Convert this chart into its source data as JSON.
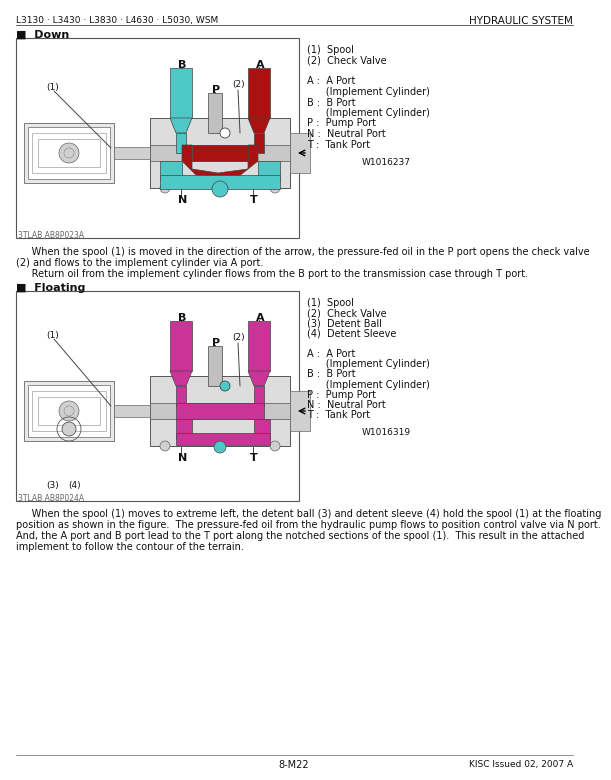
{
  "header_left": "L3130 · L3430 · L3830 · L4630 · L5030, WSM",
  "header_right": "HYDRAULIC SYSTEM",
  "section1_title": "■  Down",
  "section1_legend_line1": "(1)  Spool",
  "section1_legend_line2": "(2)  Check Valve",
  "section1_legend_line3": "",
  "section1_legend_line4": "A :  A Port",
  "section1_legend_line5": "      (Implement Cylinder)",
  "section1_legend_line6": "B :  B Port",
  "section1_legend_line7": "      (Implement Cylinder)",
  "section1_legend_line8": "P :  Pump Port",
  "section1_legend_line9": "N :  Neutral Port",
  "section1_legend_line10": "T :  Tank Port",
  "section1_code": "W1016237",
  "section1_img_label": "3TLAB AB8P023A",
  "section1_desc1": "     When the spool (1) is moved in the direction of the arrow, the pressure-fed oil in the P port opens the check valve",
  "section1_desc2": "(2) and flows to the implement cylinder via A port.",
  "section1_desc3": "     Return oil from the implement cylinder flows from the B port to the transmission case through T port.",
  "section2_title": "■  Floating",
  "section2_legend_line1": "(1)  Spool",
  "section2_legend_line2": "(2)  Check Valve",
  "section2_legend_line3": "(3)  Detent Ball",
  "section2_legend_line4": "(4)  Detent Sleeve",
  "section2_legend_line5": "",
  "section2_legend_line6": "A :  A Port",
  "section2_legend_line7": "      (Implement Cylinder)",
  "section2_legend_line8": "B :  B Port",
  "section2_legend_line9": "      (Implement Cylinder)",
  "section2_legend_line10": "P :  Pump Port",
  "section2_legend_line11": "N :  Neutral Port",
  "section2_legend_line12": "T :  Tank Port",
  "section2_code": "W1016319",
  "section2_img_label": "3TLAB AB8P024A",
  "section2_desc1": "     When the spool (1) moves to extreme left, the detent ball (3) and detent sleeve (4) hold the spool (1) at the floating",
  "section2_desc2": "position as shown in the figure.  The pressure-fed oil from the hydraulic pump flows to position control valve via N port.",
  "section2_desc3": "And, the A port and B port lead to the T port along the notched sections of the spool (1).  This result in the attached",
  "section2_desc4": "implement to follow the contour of the terrain.",
  "footer_center": "8-M22",
  "footer_right": "KISC Issued 02, 2007 A",
  "color_cyan": "#4FC8C8",
  "color_red": "#AA1111",
  "color_magenta": "#CC3399",
  "color_body_light": "#D8D8D8",
  "color_body_mid": "#B8B8B8",
  "color_body_dark": "#888888",
  "color_line": "#444444",
  "color_text": "#111111"
}
